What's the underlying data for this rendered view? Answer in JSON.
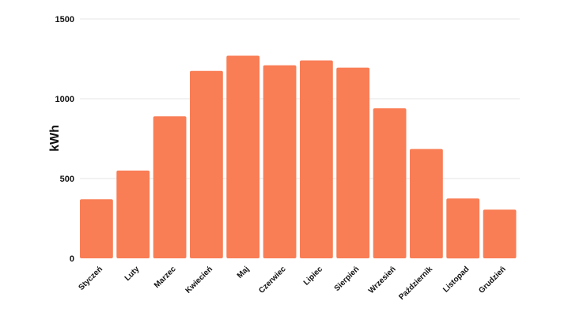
{
  "chart_data": {
    "type": "bar",
    "title": "",
    "xlabel": "",
    "ylabel": "kWh",
    "ylim": [
      0,
      1500
    ],
    "yticks": [
      0,
      500,
      1000,
      1500
    ],
    "grid": true,
    "bar_color": "#F97D55",
    "grid_color": "#E6E6E6",
    "categories": [
      "Styczeń",
      "Luty",
      "Marzec",
      "Kwiecień",
      "Maj",
      "Czerwiec",
      "Lipiec",
      "Sierpień",
      "Wrzesień",
      "Październik",
      "Listopad",
      "Grudzień"
    ],
    "values": [
      370,
      550,
      890,
      1175,
      1270,
      1210,
      1240,
      1195,
      940,
      685,
      375,
      305
    ]
  }
}
